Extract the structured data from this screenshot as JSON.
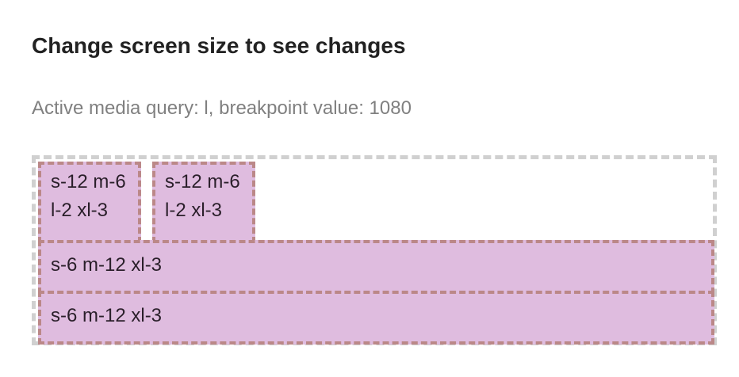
{
  "page": {
    "title": "Change screen size to see changes",
    "status": "Active media query: l, breakpoint value: 1080"
  },
  "grid": {
    "cells": [
      {
        "label": "s-12 m-6 l-2 xl-3"
      },
      {
        "label": "s-12 m-6 l-2 xl-3"
      },
      {
        "label": "s-6 m-12 xl-3"
      },
      {
        "label": "s-6 m-12 xl-3"
      }
    ]
  },
  "colors": {
    "cell_background": "#dfbcdf",
    "cell_border": "#bb8888",
    "grid_border": "#d0d0d0",
    "title_text": "#222222",
    "status_text": "#808080"
  }
}
